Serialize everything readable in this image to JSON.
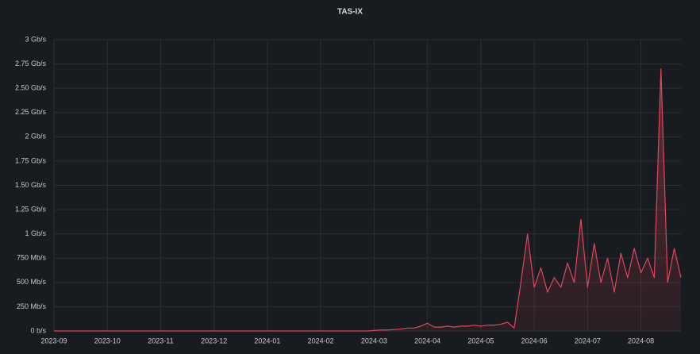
{
  "chart_data": {
    "type": "line",
    "title": "TAS-IX",
    "categories": [
      "2023-09",
      null,
      null,
      null,
      null,
      null,
      null,
      null,
      "2023-10",
      null,
      null,
      null,
      null,
      null,
      null,
      null,
      "2023-11",
      null,
      null,
      null,
      null,
      null,
      null,
      null,
      "2023-12",
      null,
      null,
      null,
      null,
      null,
      null,
      null,
      "2024-01",
      null,
      null,
      null,
      null,
      null,
      null,
      null,
      "2024-02",
      null,
      null,
      null,
      null,
      null,
      null,
      null,
      "2024-03",
      null,
      null,
      null,
      null,
      null,
      null,
      null,
      "2024-04",
      null,
      null,
      null,
      null,
      null,
      null,
      null,
      "2024-05",
      null,
      null,
      null,
      null,
      null,
      null,
      null,
      "2024-06",
      null,
      null,
      null,
      null,
      null,
      null,
      null,
      "2024-07",
      null,
      null,
      null,
      null,
      null,
      null,
      null,
      "2024-08",
      null,
      null,
      null,
      null,
      null,
      null
    ],
    "series": [
      {
        "name": "TAS-IX",
        "color": "#e0475b",
        "values": [
          0,
          0,
          0,
          0,
          0,
          0,
          0,
          0,
          0,
          0,
          0,
          0,
          0,
          0,
          0,
          0,
          0,
          0,
          0,
          0,
          0,
          0,
          0,
          0,
          0,
          0,
          0,
          0,
          0,
          0,
          0,
          0,
          0,
          0,
          0,
          0,
          0,
          0,
          0,
          0,
          0,
          0,
          0,
          0,
          0,
          0,
          0,
          0,
          0.005,
          0.01,
          0.01,
          0.015,
          0.02,
          0.03,
          0.03,
          0.05,
          0.08,
          0.04,
          0.04,
          0.05,
          0.04,
          0.05,
          0.05,
          0.06,
          0.05,
          0.06,
          0.06,
          0.07,
          0.09,
          0.03,
          0.5,
          1.0,
          0.45,
          0.65,
          0.4,
          0.55,
          0.45,
          0.7,
          0.5,
          1.15,
          0.45,
          0.9,
          0.5,
          0.75,
          0.4,
          0.8,
          0.55,
          0.85,
          0.6,
          0.75,
          0.55,
          2.7,
          0.5,
          0.85,
          0.55
        ]
      }
    ],
    "ylim": [
      0,
      3
    ],
    "yticks": [
      {
        "value": 0,
        "label": "0 b/s"
      },
      {
        "value": 0.25,
        "label": "250 Mb/s"
      },
      {
        "value": 0.5,
        "label": "500 Mb/s"
      },
      {
        "value": 0.75,
        "label": "750 Mb/s"
      },
      {
        "value": 1,
        "label": "1 Gb/s"
      },
      {
        "value": 1.25,
        "label": "1.25 Gb/s"
      },
      {
        "value": 1.5,
        "label": "1.50 Gb/s"
      },
      {
        "value": 1.75,
        "label": "1.75 Gb/s"
      },
      {
        "value": 2,
        "label": "2 Gb/s"
      },
      {
        "value": 2.25,
        "label": "2.25 Gb/s"
      },
      {
        "value": 2.5,
        "label": "2.50 Gb/s"
      },
      {
        "value": 2.75,
        "label": "2.75 Gb/s"
      },
      {
        "value": 3,
        "label": "3 Gb/s"
      }
    ],
    "grid": true
  }
}
